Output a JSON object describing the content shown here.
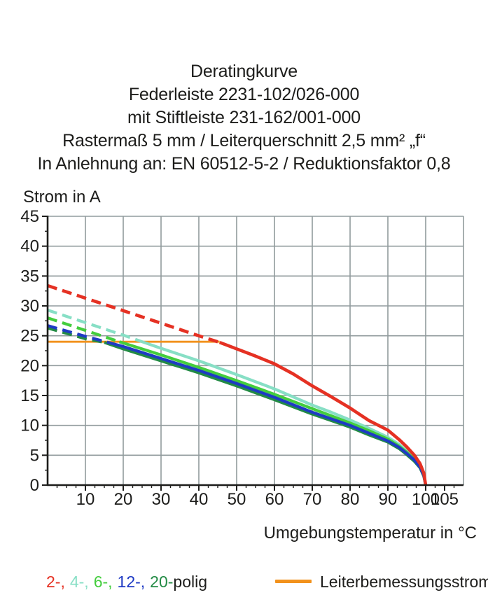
{
  "title_lines": [
    "Deratingkurve",
    "Federleiste 2231-102/026-000",
    "mit Stiftleiste 231-162/001-000",
    "Rastermaß 5 mm / Leiterquerschnitt 2,5 mm² „f“",
    "In Anlehnung an: EN 60512-5-2 / Reduktionsfaktor 0,8"
  ],
  "chart_data": {
    "type": "line",
    "title": "Deratingkurve",
    "xlabel": "Umgebungstemperatur in °C",
    "ylabel": "Strom in A",
    "xlim": [
      0,
      110
    ],
    "ylim": [
      0,
      45
    ],
    "x_major_ticks": [
      10,
      20,
      30,
      40,
      50,
      60,
      70,
      80,
      90,
      100,
      105
    ],
    "y_major_ticks": [
      0,
      5,
      10,
      15,
      20,
      25,
      30,
      35,
      40,
      45
    ],
    "minor_tick_step": 2.5,
    "grid": {
      "x_step": 10,
      "y_step": 5,
      "color": "#919b9d",
      "on": true
    },
    "axis_color": "#1d1d1b",
    "rated_current_line": {
      "label": "Leiterbemessungsstrom",
      "value": 24,
      "x_start": 0,
      "x_end": 45.5,
      "color": "#f2921d"
    },
    "legend_position": "bottom",
    "series": [
      {
        "name": "2-polig",
        "color": "#e53123",
        "width": 4.6,
        "z": 5,
        "dash_until": 45.5,
        "points": [
          [
            0,
            33.4
          ],
          [
            10,
            31.3
          ],
          [
            20,
            29.2
          ],
          [
            30,
            27.1
          ],
          [
            40,
            25.0
          ],
          [
            45.5,
            23.9
          ],
          [
            50,
            22.8
          ],
          [
            55,
            21.6
          ],
          [
            60,
            20.3
          ],
          [
            65,
            18.6
          ],
          [
            70,
            16.6
          ],
          [
            75,
            14.8
          ],
          [
            80,
            12.9
          ],
          [
            85,
            10.8
          ],
          [
            90,
            9.2
          ],
          [
            93,
            7.6
          ],
          [
            95,
            6.4
          ],
          [
            97,
            5.0
          ],
          [
            98.5,
            3.6
          ],
          [
            99.5,
            2.0
          ],
          [
            100,
            0
          ]
        ]
      },
      {
        "name": "4-polig",
        "color": "#87dfc5",
        "width": 4.2,
        "z": 1,
        "dash_until": 25,
        "points": [
          [
            0,
            29.3
          ],
          [
            10,
            27.2
          ],
          [
            20,
            25.1
          ],
          [
            25,
            24.0
          ],
          [
            30,
            22.9
          ],
          [
            40,
            20.8
          ],
          [
            50,
            18.5
          ],
          [
            60,
            16.1
          ],
          [
            70,
            13.4
          ],
          [
            75,
            12.2
          ],
          [
            80,
            10.9
          ],
          [
            85,
            9.5
          ],
          [
            90,
            8.0
          ],
          [
            93,
            6.8
          ],
          [
            95,
            5.7
          ],
          [
            97,
            4.5
          ],
          [
            98.5,
            3.2
          ],
          [
            99.5,
            1.8
          ],
          [
            100,
            0
          ]
        ]
      },
      {
        "name": "6-polig",
        "color": "#43cd3d",
        "width": 4.2,
        "z": 2,
        "dash_until": 19,
        "points": [
          [
            0,
            28.0
          ],
          [
            10,
            25.9
          ],
          [
            19,
            24.0
          ],
          [
            30,
            21.8
          ],
          [
            40,
            19.7
          ],
          [
            50,
            17.5
          ],
          [
            60,
            15.2
          ],
          [
            70,
            12.8
          ],
          [
            75,
            11.6
          ],
          [
            80,
            10.4
          ],
          [
            85,
            9.1
          ],
          [
            90,
            7.7
          ],
          [
            93,
            6.5
          ],
          [
            95,
            5.5
          ],
          [
            97,
            4.3
          ],
          [
            98.5,
            3.1
          ],
          [
            99.5,
            1.7
          ],
          [
            100,
            0
          ]
        ]
      },
      {
        "name": "12-polig",
        "color": "#1e3ac4",
        "width": 4.2,
        "z": 4,
        "dash_until": 16,
        "points": [
          [
            0,
            26.7
          ],
          [
            10,
            24.9
          ],
          [
            16,
            23.9
          ],
          [
            20,
            23.2
          ],
          [
            30,
            21.2
          ],
          [
            40,
            19.2
          ],
          [
            50,
            17.0
          ],
          [
            60,
            14.7
          ],
          [
            70,
            12.2
          ],
          [
            75,
            11.1
          ],
          [
            80,
            10.0
          ],
          [
            85,
            8.7
          ],
          [
            90,
            7.4
          ],
          [
            93,
            6.3
          ],
          [
            95,
            5.3
          ],
          [
            97,
            4.2
          ],
          [
            98.5,
            3.0
          ],
          [
            99.5,
            1.6
          ],
          [
            100,
            0
          ]
        ]
      },
      {
        "name": "20-polig",
        "color": "#238b45",
        "width": 4.2,
        "z": 3,
        "dash_until": 15,
        "points": [
          [
            0,
            26.3
          ],
          [
            10,
            24.5
          ],
          [
            15,
            23.9
          ],
          [
            20,
            22.8
          ],
          [
            30,
            20.8
          ],
          [
            40,
            18.8
          ],
          [
            50,
            16.6
          ],
          [
            60,
            14.3
          ],
          [
            70,
            11.9
          ],
          [
            75,
            10.8
          ],
          [
            80,
            9.7
          ],
          [
            85,
            8.4
          ],
          [
            90,
            7.2
          ],
          [
            93,
            6.1
          ],
          [
            95,
            5.1
          ],
          [
            97,
            4.0
          ],
          [
            98.5,
            2.9
          ],
          [
            99.5,
            1.5
          ],
          [
            100,
            0
          ]
        ]
      }
    ]
  },
  "axis_titles": {
    "y": "Strom in A",
    "x": "Umgebungstemperatur in °C"
  },
  "legend": {
    "poles": [
      {
        "label": "2-,",
        "color": "#e53123"
      },
      {
        "label": "4-,",
        "color": "#87dfc5"
      },
      {
        "label": "6-,",
        "color": "#43cd3d"
      },
      {
        "label": "12-,",
        "color": "#1e3ac4"
      },
      {
        "label": "20-",
        "color": "#238b45"
      }
    ],
    "poles_suffix": "polig",
    "rated": {
      "label": "Leiterbemessungsstrom",
      "color": "#f2921d"
    }
  }
}
